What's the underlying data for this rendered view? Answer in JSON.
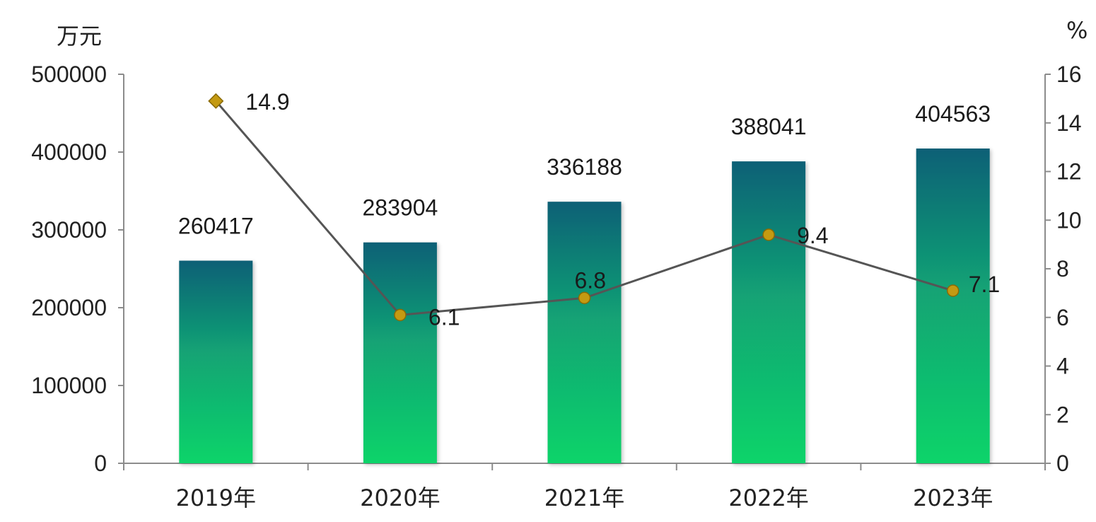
{
  "chart_data": {
    "type": "bar",
    "categories": [
      "2019年",
      "2020年",
      "2021年",
      "2022年",
      "2023年"
    ],
    "series": [
      {
        "type": "bar",
        "axis": "left",
        "values": [
          260417,
          283904,
          336188,
          388041,
          404563
        ]
      },
      {
        "type": "line",
        "axis": "right",
        "values": [
          14.9,
          6.1,
          6.8,
          9.4,
          7.1
        ]
      }
    ],
    "y_left": {
      "unit": "万元",
      "ylim": [
        0,
        500000
      ],
      "ticks": [
        0,
        100000,
        200000,
        300000,
        400000,
        500000
      ]
    },
    "y_right": {
      "unit": "%",
      "ylim": [
        0,
        16
      ],
      "ticks": [
        0,
        2,
        4,
        6,
        8,
        10,
        12,
        14,
        16
      ]
    },
    "grid": false,
    "legend": "none",
    "colors": {
      "bar_top": "#0e6076",
      "bar_bottom": "#10d46a",
      "line": "#555555",
      "marker": "#c49a12"
    }
  }
}
